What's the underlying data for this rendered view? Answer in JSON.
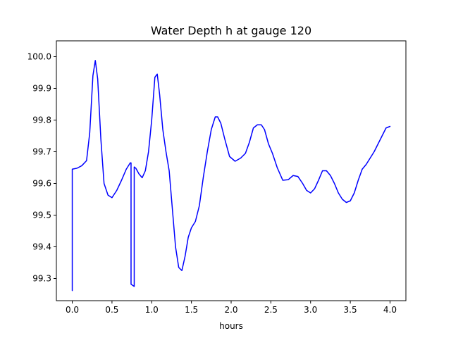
{
  "chart_data": {
    "type": "line",
    "title": "Water Depth h at gauge 120",
    "xlabel": "hours",
    "ylabel": "",
    "xlim": [
      -0.2,
      4.2
    ],
    "ylim": [
      99.23,
      100.05
    ],
    "xticks": [
      0.0,
      0.5,
      1.0,
      1.5,
      2.0,
      2.5,
      3.0,
      3.5,
      4.0
    ],
    "xtick_labels": [
      "0.0",
      "0.5",
      "1.0",
      "1.5",
      "2.0",
      "2.5",
      "3.0",
      "3.5",
      "4.0"
    ],
    "yticks": [
      99.3,
      99.4,
      99.5,
      99.6,
      99.7,
      99.8,
      99.9,
      100.0
    ],
    "ytick_labels": [
      "99.3",
      "99.4",
      "99.5",
      "99.6",
      "99.7",
      "99.8",
      "99.9",
      "100.0"
    ],
    "grid": false,
    "series": [
      {
        "color": "#0000ff",
        "x": [
          0.0,
          0.0,
          0.06,
          0.12,
          0.18,
          0.22,
          0.26,
          0.29,
          0.32,
          0.36,
          0.4,
          0.45,
          0.5,
          0.56,
          0.62,
          0.68,
          0.73,
          0.74,
          0.74,
          0.78,
          0.78,
          0.8,
          0.84,
          0.88,
          0.92,
          0.96,
          1.0,
          1.04,
          1.07,
          1.1,
          1.14,
          1.18,
          1.22,
          1.26,
          1.3,
          1.34,
          1.38,
          1.42,
          1.46,
          1.5,
          1.55,
          1.6,
          1.65,
          1.7,
          1.75,
          1.8,
          1.83,
          1.87,
          1.92,
          1.98,
          2.05,
          2.12,
          2.18,
          2.23,
          2.28,
          2.33,
          2.38,
          2.42,
          2.47,
          2.52,
          2.58,
          2.65,
          2.72,
          2.78,
          2.84,
          2.9,
          2.95,
          3.0,
          3.05,
          3.1,
          3.15,
          3.2,
          3.25,
          3.3,
          3.35,
          3.4,
          3.45,
          3.5,
          3.55,
          3.6,
          3.65,
          3.7,
          3.75,
          3.8,
          3.85,
          3.9,
          3.95,
          4.0
        ],
        "y": [
          99.262,
          99.645,
          99.648,
          99.656,
          99.672,
          99.76,
          99.94,
          99.988,
          99.93,
          99.74,
          99.6,
          99.563,
          99.555,
          99.578,
          99.61,
          99.645,
          99.665,
          99.665,
          99.282,
          99.275,
          99.652,
          99.648,
          99.63,
          99.618,
          99.64,
          99.7,
          99.8,
          99.935,
          99.945,
          99.88,
          99.77,
          99.7,
          99.64,
          99.52,
          99.4,
          99.335,
          99.325,
          99.37,
          99.43,
          99.46,
          99.48,
          99.53,
          99.62,
          99.7,
          99.77,
          99.81,
          99.81,
          99.79,
          99.74,
          99.685,
          99.67,
          99.68,
          99.695,
          99.73,
          99.775,
          99.785,
          99.785,
          99.77,
          99.725,
          99.695,
          99.65,
          99.61,
          99.612,
          99.625,
          99.622,
          99.6,
          99.578,
          99.57,
          99.583,
          99.61,
          99.64,
          99.64,
          99.625,
          99.6,
          99.57,
          99.55,
          99.54,
          99.545,
          99.57,
          99.61,
          99.645,
          99.66,
          99.68,
          99.7,
          99.725,
          99.75,
          99.775,
          99.78
        ]
      }
    ]
  }
}
